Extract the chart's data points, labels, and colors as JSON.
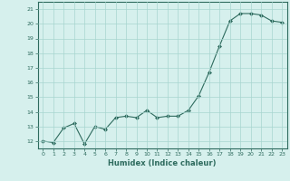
{
  "x": [
    0,
    1,
    2,
    3,
    4,
    5,
    6,
    7,
    8,
    9,
    10,
    11,
    12,
    13,
    14,
    15,
    16,
    17,
    18,
    19,
    20,
    21,
    22,
    23
  ],
  "y": [
    12.0,
    11.9,
    12.9,
    13.2,
    11.8,
    13.0,
    12.8,
    13.6,
    13.7,
    13.6,
    14.1,
    13.6,
    13.7,
    13.7,
    14.1,
    15.1,
    16.7,
    18.5,
    20.2,
    20.7,
    20.7,
    20.6,
    20.2,
    20.1
  ],
  "line_color": "#2e6b5e",
  "marker_color": "#2e6b5e",
  "bg_color": "#d6f0ed",
  "grid_color": "#a8d5cf",
  "xlabel": "Humidex (Indice chaleur)",
  "ylabel_ticks": [
    12,
    13,
    14,
    15,
    16,
    17,
    18,
    19,
    20,
    21
  ],
  "ylim": [
    11.5,
    21.5
  ],
  "xlim": [
    -0.5,
    23.5
  ],
  "title": ""
}
